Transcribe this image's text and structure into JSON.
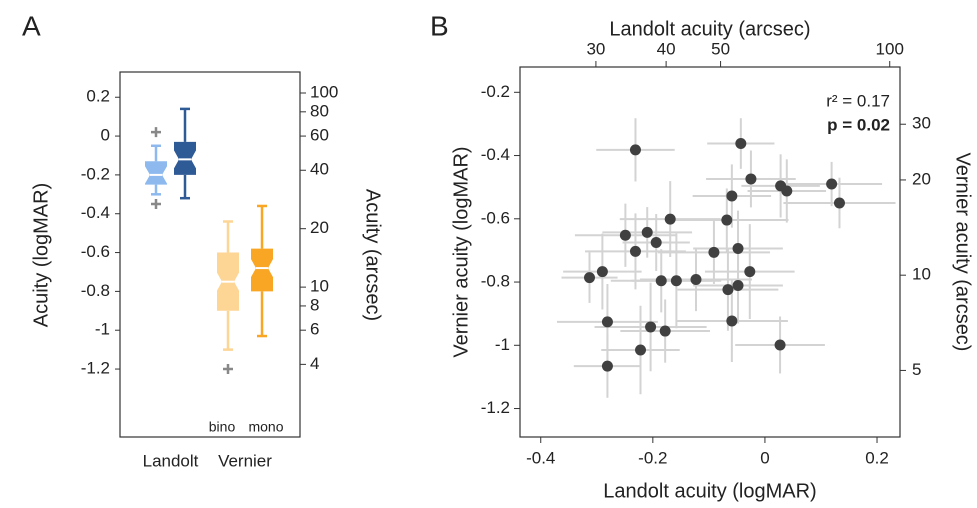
{
  "chart_data": [
    {
      "type": "box",
      "panel": "A",
      "ylabel": "Acuity (logMAR)",
      "y2label": "Acuity (arcsec)",
      "categories": [
        "Landolt",
        "Vernier"
      ],
      "series": [
        {
          "name": "bino",
          "colors": [
            "#8db9ee",
            "#fdd595"
          ],
          "boxes": [
            {
              "whislo": -0.3,
              "q1": -0.25,
              "med": -0.2,
              "q3": -0.13,
              "whishi": -0.05,
              "fliers": [
                0.02,
                -0.35
              ]
            },
            {
              "whislo": -1.1,
              "q1": -0.9,
              "med": -0.75,
              "q3": -0.6,
              "whishi": -0.44,
              "fliers": [
                -1.2
              ]
            }
          ]
        },
        {
          "name": "mono",
          "colors": [
            "#2e5a96",
            "#f8a623"
          ],
          "boxes": [
            {
              "whislo": -0.32,
              "q1": -0.2,
              "med": -0.12,
              "q3": -0.03,
              "whishi": 0.14,
              "fliers": []
            },
            {
              "whislo": -1.03,
              "q1": -0.8,
              "med": -0.68,
              "q3": -0.58,
              "whishi": -0.36,
              "fliers": []
            }
          ]
        }
      ],
      "ylim": [
        -1.55,
        0.33
      ],
      "yticks": [
        0.2,
        0,
        -0.2,
        -0.4,
        -0.6,
        -0.8,
        -1,
        -1.2
      ],
      "y2lim": [
        1.69,
        128.3
      ],
      "y2scale": "log",
      "y2ticks": [
        100,
        80,
        60,
        40,
        20,
        10,
        8,
        6,
        4
      ]
    },
    {
      "type": "scatter",
      "panel": "B",
      "xlabel": "Landolt acuity (logMAR)",
      "ylabel": "Vernier acuity (logMAR)",
      "x2label": "Landolt acuity (arcsec)",
      "y2label": "Vernier acuity (arcsec)",
      "color": "#404040",
      "error_color": "#d3d3d3",
      "x": [
        -0.231,
        -0.043,
        -0.025,
        -0.059,
        0.028,
        0.039,
        0.119,
        0.133,
        -0.169,
        -0.068,
        -0.249,
        -0.21,
        -0.194,
        -0.231,
        -0.048,
        -0.091,
        -0.027,
        -0.313,
        -0.29,
        -0.185,
        -0.158,
        -0.123,
        -0.066,
        -0.048,
        -0.281,
        -0.204,
        -0.178,
        -0.059,
        -0.222,
        0.027,
        -0.281
      ],
      "y": [
        -0.382,
        -0.362,
        -0.474,
        -0.528,
        -0.496,
        -0.512,
        -0.49,
        -0.55,
        -0.601,
        -0.604,
        -0.652,
        -0.643,
        -0.675,
        -0.703,
        -0.694,
        -0.706,
        -0.767,
        -0.786,
        -0.767,
        -0.796,
        -0.796,
        -0.792,
        -0.824,
        -0.811,
        -0.926,
        -0.942,
        -0.955,
        -0.923,
        -1.015,
        -0.999,
        -1.066
      ],
      "xerr": [
        0.07,
        0.06,
        0.08,
        0.07,
        0.07,
        0.07,
        0.09,
        0.1,
        0.09,
        0.11,
        0.09,
        0.08,
        0.06,
        0.09,
        0.08,
        0.1,
        0.08,
        0.05,
        0.07,
        0.09,
        0.08,
        0.1,
        0.09,
        0.08,
        0.09,
        0.1,
        0.08,
        0.1,
        0.07,
        0.08,
        0.06
      ],
      "yerr": [
        0.1,
        0.08,
        0.09,
        0.1,
        0.1,
        0.1,
        0.07,
        0.08,
        0.12,
        0.1,
        0.1,
        0.08,
        0.09,
        0.12,
        0.12,
        0.1,
        0.15,
        0.08,
        0.12,
        0.1,
        0.15,
        0.1,
        0.13,
        0.12,
        0.12,
        0.14,
        0.1,
        0.13,
        0.14,
        0.09,
        0.1
      ],
      "xlim": [
        -0.437,
        0.241
      ],
      "xticks": [
        -0.4,
        -0.2,
        0,
        0.2
      ],
      "ylim": [
        -1.29,
        -0.12
      ],
      "yticks": [
        -0.2,
        -0.4,
        -0.6,
        -0.8,
        -1,
        -1.2
      ],
      "x2lim": [
        21.98,
        104.3
      ],
      "x2scale": "log",
      "x2ticks": [
        30,
        40,
        50,
        100
      ],
      "y2lim": [
        3.08,
        45.5
      ],
      "y2scale": "log",
      "y2ticks": [
        5,
        10,
        20,
        30
      ],
      "annotations": [
        "r² = 0.17",
        "p = 0.02"
      ]
    }
  ]
}
